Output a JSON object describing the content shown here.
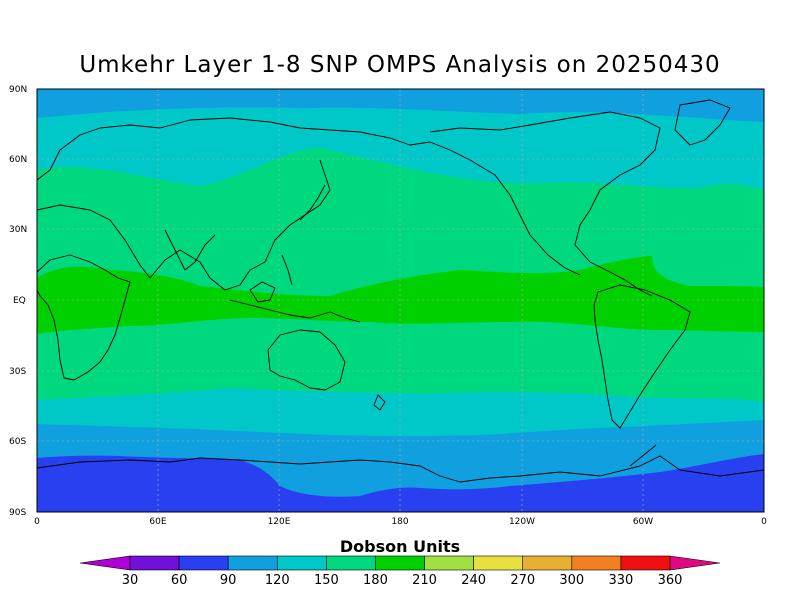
{
  "title": "Umkehr Layer 1-8 SNP OMPS Analysis on 20250430",
  "units_label": "Dobson Units",
  "chart_data": {
    "type": "heatmap",
    "title": "Umkehr Layer 1-8 SNP OMPS Analysis on 20250430",
    "colorbar_label": "Dobson Units",
    "x_ticks": [
      "0",
      "60E",
      "120E",
      "180",
      "120W",
      "60W",
      "0"
    ],
    "y_ticks": [
      "90N",
      "60N",
      "30N",
      "EQ",
      "30S",
      "60S",
      "90S"
    ],
    "x_range": [
      0,
      360
    ],
    "y_range": [
      -90,
      90
    ],
    "levels": [
      "30",
      "60",
      "90",
      "120",
      "150",
      "180",
      "210",
      "240",
      "270",
      "300",
      "330",
      "360"
    ],
    "level_values": [
      30,
      60,
      90,
      120,
      150,
      180,
      210,
      240,
      270,
      300,
      330,
      360
    ],
    "colors": [
      "#b000d8",
      "#7010d8",
      "#2840f0",
      "#10a0e0",
      "#00c8c8",
      "#00d880",
      "#00d000",
      "#a0e040",
      "#e8e040",
      "#e8b030",
      "#f08020",
      "#f01010",
      "#e00880"
    ],
    "latitude_bands": [
      {
        "lat_from": 90,
        "lat_to": 78,
        "value_range": "90-120"
      },
      {
        "lat_from": 78,
        "lat_to": 64,
        "value_range": "150-180"
      },
      {
        "lat_from": 64,
        "lat_to": 12,
        "value_range": "180-210"
      },
      {
        "lat_from": 12,
        "lat_to": -12,
        "value_range": "210-240"
      },
      {
        "lat_from": -12,
        "lat_to": -34,
        "value_range": "180-210"
      },
      {
        "lat_from": -34,
        "lat_to": -48,
        "value_range": "150-180"
      },
      {
        "lat_from": -48,
        "lat_to": -62,
        "value_range": "120-150"
      },
      {
        "lat_from": -62,
        "lat_to": -70,
        "value_range": "90-120"
      },
      {
        "lat_from": -70,
        "lat_to": -90,
        "value_range": "60-90"
      }
    ],
    "grid": true
  }
}
